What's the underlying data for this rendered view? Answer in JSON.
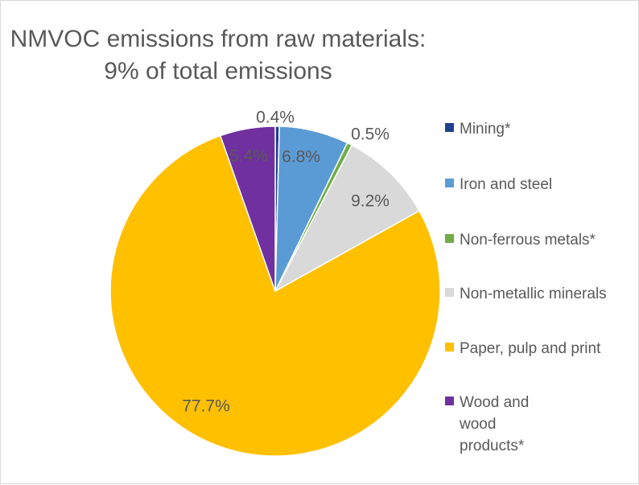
{
  "chart_data": {
    "type": "pie",
    "title_lines": [
      "NMVOC emissions from raw materials:",
      "9% of total emissions"
    ],
    "slices": [
      {
        "name": "Mining*",
        "value": 0.4,
        "label": "0.4%",
        "color": "#203f8f"
      },
      {
        "name": "Iron and steel",
        "value": 6.8,
        "label": "6.8%",
        "color": "#5b9bd5"
      },
      {
        "name": "Non-ferrous metals*",
        "value": 0.5,
        "label": "0.5%",
        "color": "#70ad47"
      },
      {
        "name": "Non-metallic minerals",
        "value": 9.2,
        "label": "9.2%",
        "color": "#d9d9d9"
      },
      {
        "name": "Paper, pulp and print",
        "value": 77.7,
        "label": "77.7%",
        "color": "#ffc000"
      },
      {
        "name": "Wood and wood products*",
        "value": 5.4,
        "label": "5.4%",
        "color": "#7030a0"
      }
    ],
    "legend_position": "right"
  }
}
